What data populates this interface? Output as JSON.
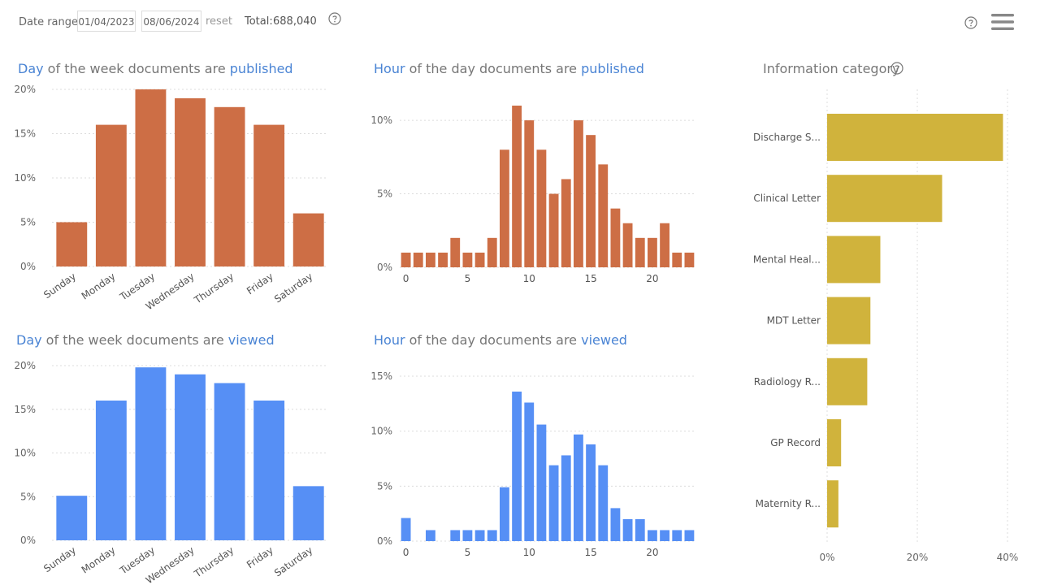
{
  "filters": {
    "date_range_label": "Date range:",
    "start_date": "01/04/2023",
    "end_date": "08/06/2024",
    "reset_label": "reset",
    "total_label": "Total:",
    "total_value": "688,040"
  },
  "colors": {
    "published": "#cd6e45",
    "viewed": "#568ff5",
    "category": "#d0b33c",
    "title_highlight": "#4a84d4"
  },
  "icons": {
    "filter_help": "question-circle",
    "page_help": "question-circle",
    "menu": "hamburger-menu",
    "category_help": "question-circle"
  },
  "titles": {
    "dow_published": {
      "a": "Day",
      "b": " of the week documents are ",
      "c": "published"
    },
    "hod_published": {
      "a": "Hour",
      "b": " of the day documents are ",
      "c": "published"
    },
    "dow_viewed": {
      "a": "Day",
      "b": " of the week documents are ",
      "c": "viewed"
    },
    "hod_viewed": {
      "a": "Hour",
      "b": " of the day documents are ",
      "c": "viewed"
    },
    "category": "Information category"
  },
  "chart_data": [
    {
      "id": "dow_published",
      "type": "bar",
      "categories": [
        "Sunday",
        "Monday",
        "Tuesday",
        "Wednesday",
        "Thursday",
        "Friday",
        "Saturday"
      ],
      "values": [
        5,
        16,
        20,
        19,
        18,
        16,
        6
      ],
      "ylim": [
        0,
        20
      ],
      "yticks": [
        0,
        5,
        10,
        15,
        20
      ],
      "ytick_labels": [
        "0%",
        "5%",
        "10%",
        "15%",
        "20%"
      ],
      "grid": true
    },
    {
      "id": "hod_published",
      "type": "bar",
      "x": [
        0,
        1,
        2,
        3,
        4,
        5,
        6,
        7,
        8,
        9,
        10,
        11,
        12,
        13,
        14,
        15,
        16,
        17,
        18,
        19,
        20,
        21,
        22,
        23
      ],
      "values": [
        1,
        1,
        1,
        1,
        2,
        1,
        1,
        2,
        8,
        11,
        10,
        8,
        5,
        6,
        10,
        9,
        7,
        4,
        3,
        2,
        2,
        3,
        1,
        1
      ],
      "ylim": [
        0,
        11
      ],
      "yticks": [
        0,
        5,
        10
      ],
      "ytick_labels": [
        "0%",
        "5%",
        "10%"
      ],
      "xticks": [
        0,
        5,
        10,
        15,
        20
      ],
      "xtick_labels": [
        "0",
        "5",
        "10",
        "15",
        "20"
      ],
      "grid": true
    },
    {
      "id": "dow_viewed",
      "type": "bar",
      "categories": [
        "Sunday",
        "Monday",
        "Tuesday",
        "Wednesday",
        "Thursday",
        "Friday",
        "Saturday"
      ],
      "values": [
        5.1,
        16,
        19.8,
        19,
        18,
        16,
        6.2
      ],
      "ylim": [
        0,
        20
      ],
      "yticks": [
        0,
        5,
        10,
        15,
        20
      ],
      "ytick_labels": [
        "0%",
        "5%",
        "10%",
        "15%",
        "20%"
      ],
      "grid": true
    },
    {
      "id": "hod_viewed",
      "type": "bar",
      "x": [
        0,
        1,
        2,
        3,
        4,
        5,
        6,
        7,
        8,
        9,
        10,
        11,
        12,
        13,
        14,
        15,
        16,
        17,
        18,
        19,
        20,
        21,
        22,
        23
      ],
      "values": [
        2.1,
        0,
        1,
        0,
        1,
        1,
        1,
        1,
        4.9,
        13.6,
        12.6,
        10.6,
        6.9,
        7.8,
        9.7,
        8.8,
        6.9,
        3,
        2,
        2,
        1,
        1,
        1,
        1
      ],
      "ylim": [
        0,
        15
      ],
      "yticks": [
        0,
        5,
        10,
        15
      ],
      "ytick_labels": [
        "0%",
        "5%",
        "10%",
        "15%"
      ],
      "xticks": [
        0,
        5,
        10,
        15,
        20
      ],
      "xtick_labels": [
        "0",
        "5",
        "10",
        "15",
        "20"
      ],
      "grid": true
    },
    {
      "id": "category",
      "type": "bar",
      "orientation": "horizontal",
      "categories": [
        "Discharge S...",
        "Clinical Letter",
        "Mental Heal...",
        "MDT Letter",
        "Radiology R...",
        "GP Record",
        "Maternity R..."
      ],
      "values": [
        39,
        25.5,
        11.8,
        9.6,
        8.9,
        3.1,
        2.5
      ],
      "xlim": [
        0,
        40
      ],
      "xticks": [
        0,
        20,
        40
      ],
      "xtick_labels": [
        "0%",
        "20%",
        "40%"
      ],
      "grid": true
    }
  ]
}
